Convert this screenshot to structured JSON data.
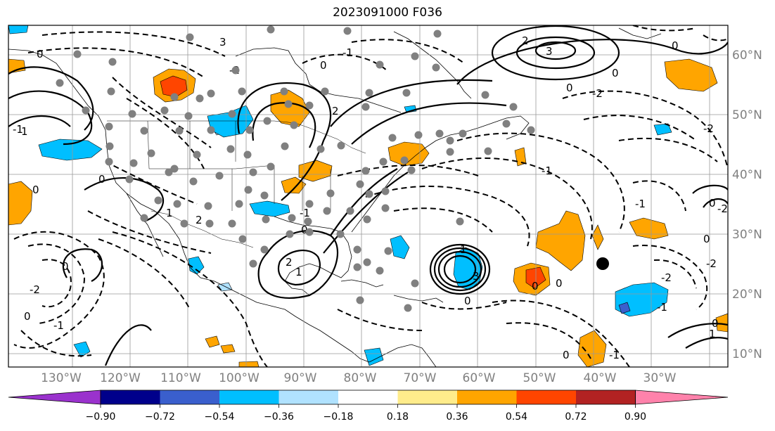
{
  "title": "2023091000 F036",
  "x_ticks": [
    "130°W",
    "120°W",
    "110°W",
    "100°W",
    "90°W",
    "80°W",
    "70°W",
    "60°W",
    "50°W",
    "40°W",
    "30°W"
  ],
  "y_ticks": [
    "60°N",
    "50°N",
    "40°N",
    "30°N",
    "20°N",
    "10°N"
  ],
  "colorbar": {
    "ticks": [
      "−0.90",
      "−0.72",
      "−0.54",
      "−0.36",
      "−0.18",
      "0.18",
      "0.36",
      "0.54",
      "0.72",
      "0.90"
    ],
    "colors": [
      "#9a32cd",
      "#00008b",
      "#3a5fcd",
      "#00bfff",
      "#b0e2ff",
      "#ffffff",
      "#ffec8b",
      "#ffa500",
      "#ff4500",
      "#b22222",
      "#ff82ab"
    ]
  },
  "contour_labels": [
    "0",
    "-1",
    "-2",
    "1",
    "2",
    "3"
  ],
  "colors": {
    "contour": "#000000",
    "gridline": "#999999",
    "station": "#808080",
    "tick_text": "#808080"
  }
}
